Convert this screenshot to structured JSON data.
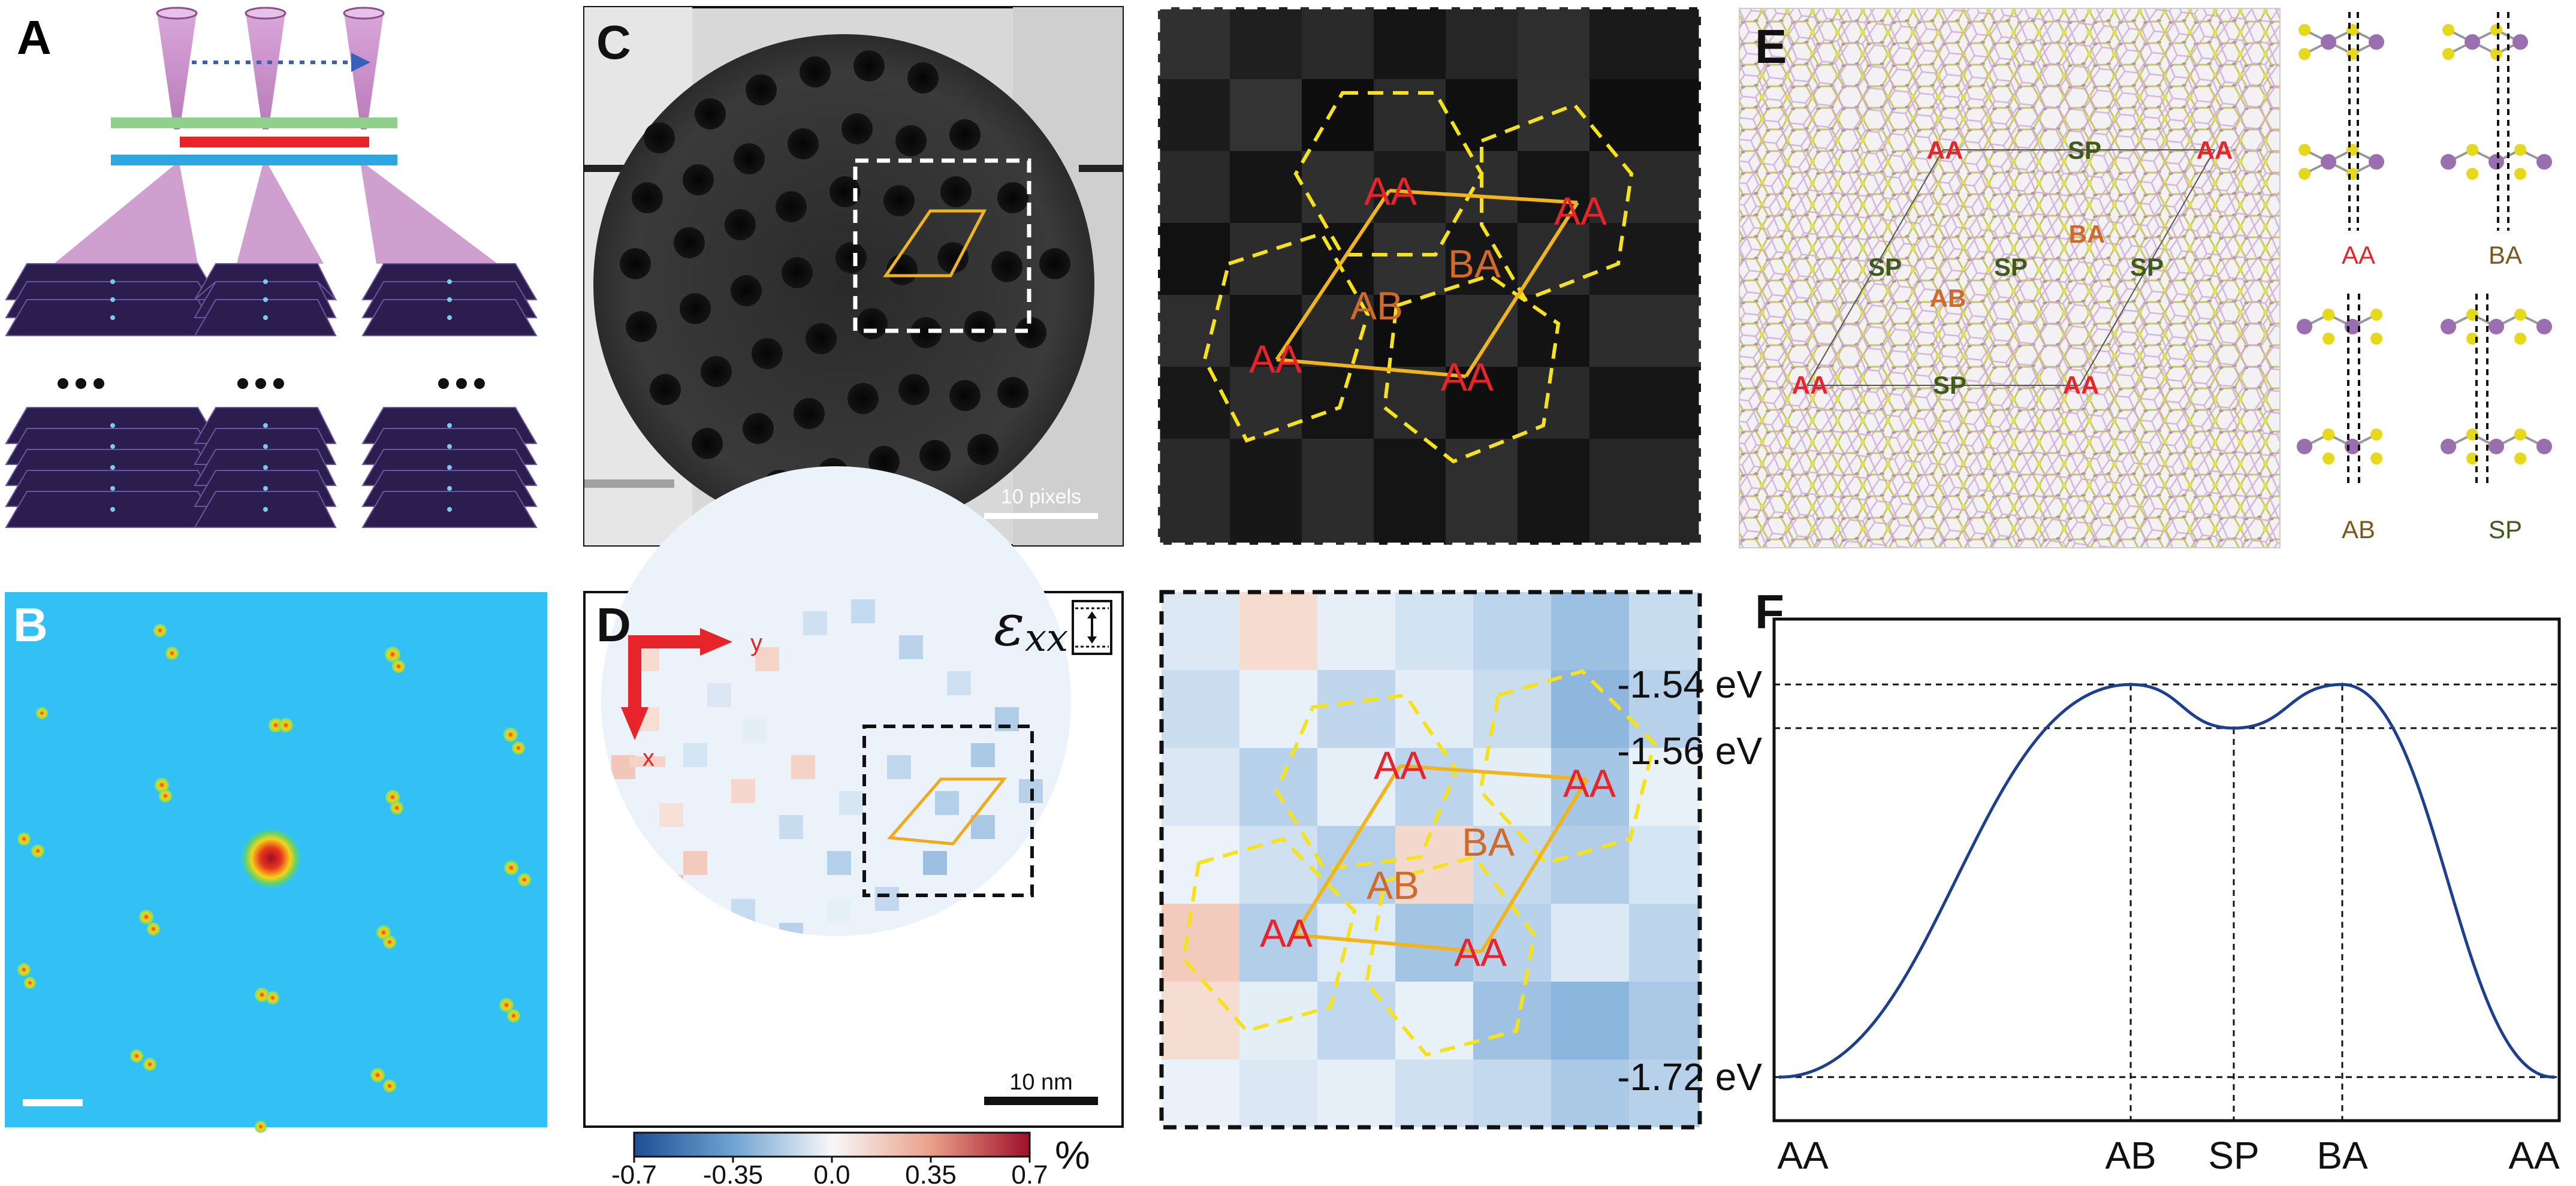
{
  "panels": {
    "A": {
      "label": "A"
    },
    "B": {
      "label": "B"
    },
    "C": {
      "label": "C",
      "scale_bar": "10 pixels",
      "zoom_labels": {
        "aa1": "AA",
        "aa2": "AA",
        "aa3": "AA",
        "aa4": "AA",
        "ab": "AB",
        "ba": "BA"
      }
    },
    "D": {
      "label": "D",
      "axis_x": "x",
      "axis_y": "y",
      "strain_symbol": "ε",
      "strain_subscript": "xx",
      "scale_bar": "10 nm",
      "colorbar": {
        "ticks": [
          "-0.7",
          "-0.35",
          "0.0",
          "0.35",
          "0.7"
        ],
        "unit": "%",
        "colors": [
          "#1f4e94",
          "#6fa3d1",
          "#f7f7f7",
          "#eba08a",
          "#9e0f2a"
        ]
      },
      "zoom_labels": {
        "aa1": "AA",
        "aa2": "AA",
        "aa3": "AA",
        "aa4": "AA",
        "ab": "AB",
        "ba": "BA"
      }
    },
    "E": {
      "label": "E",
      "map_labels": {
        "aa_tl": "AA",
        "aa_tr": "AA",
        "aa_bl": "AA",
        "aa_br": "AA",
        "sp_top": "SP",
        "sp_bottom": "SP",
        "sp_left": "SP",
        "sp_mid": "SP",
        "sp_right": "SP",
        "ba": "BA",
        "ab": "AB"
      },
      "stacking_labels": {
        "aa": "AA",
        "ba": "BA",
        "ab": "AB",
        "sp": "SP"
      }
    },
    "F": {
      "label": "F",
      "y_ticks": [
        "-1.54 eV",
        "-1.56 eV",
        "-1.72 eV"
      ],
      "x_ticks": [
        "AA",
        "AB",
        "SP",
        "BA",
        "AA"
      ],
      "line_color": "#1c3f8f"
    }
  },
  "chart_data": {
    "type": "line",
    "title": "",
    "xlabel": "",
    "ylabel": "",
    "categories": [
      "AA",
      "AB",
      "SP",
      "BA",
      "AA"
    ],
    "y": [
      -1.72,
      -1.54,
      -1.56,
      -1.54,
      -1.72
    ],
    "y_unit": "eV",
    "ylim": [
      -1.74,
      -1.51
    ],
    "grid": false
  }
}
